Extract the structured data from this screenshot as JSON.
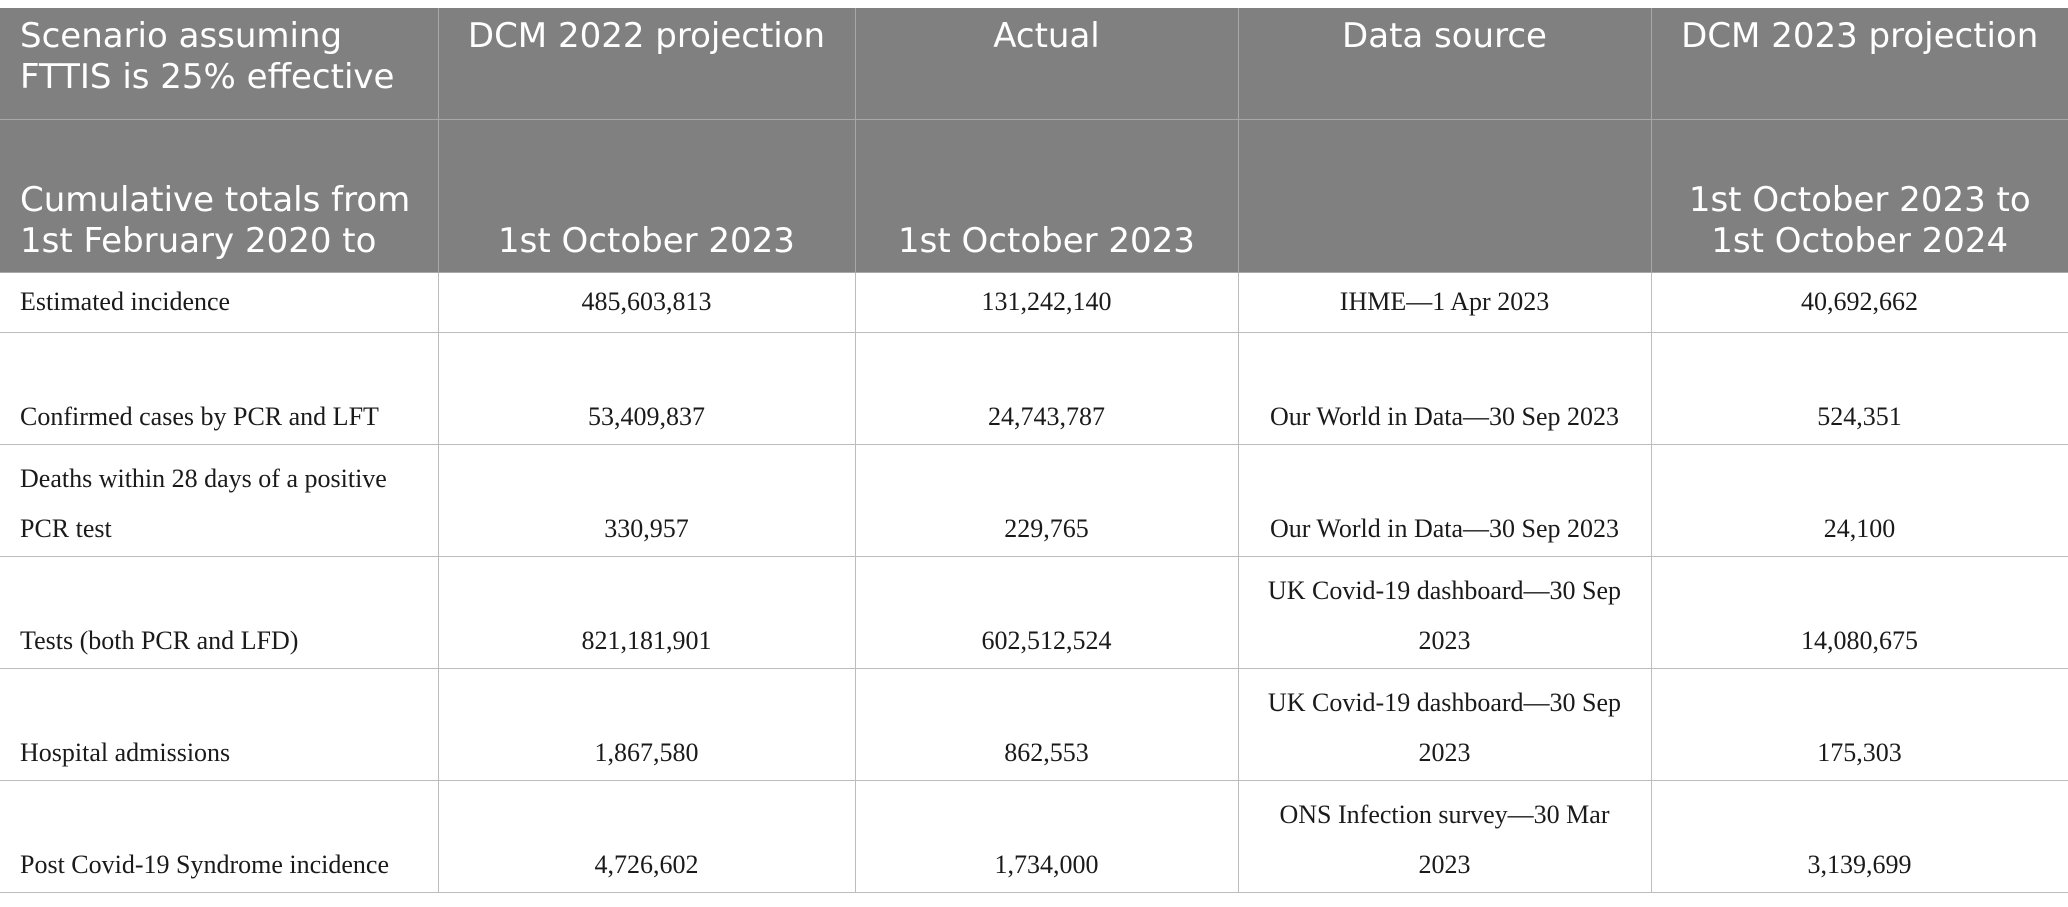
{
  "header_row_1": [
    "Scenario assuming FTTIS is 25% effective",
    "DCM 2022 projection",
    "Actual",
    "Data source",
    "DCM 2023 projection"
  ],
  "header_row_2": [
    "Cumulative totals from 1st February 2020 to",
    "1st October 2023",
    "1st October 2023",
    "",
    "1st October 2023 to 1st October 2024"
  ],
  "rows": [
    [
      "Estimated incidence",
      "485,603,813",
      "131,242,140",
      "IHME—1 Apr 2023",
      "40,692,662"
    ],
    [
      "Confirmed cases by PCR and LFT",
      "53,409,837",
      "24,743,787",
      "Our World in Data—30 Sep 2023",
      "524,351"
    ],
    [
      "Deaths within 28 days of a positive PCR test",
      "330,957",
      "229,765",
      "Our World in Data—30 Sep 2023",
      "24,100"
    ],
    [
      "Tests (both PCR and LFD)",
      "821,181,901",
      "602,512,524",
      "UK Covid-19 dashboard—30 Sep 2023",
      "14,080,675"
    ],
    [
      "Hospital admissions",
      "1,867,580",
      "862,553",
      "UK Covid-19 dashboard—30 Sep 2023",
      "175,303"
    ],
    [
      "Post Covid-19 Syndrome incidence",
      "4,726,602",
      "1,734,000",
      "ONS Infection survey—30 Mar 2023",
      "3,139,699"
    ]
  ]
}
